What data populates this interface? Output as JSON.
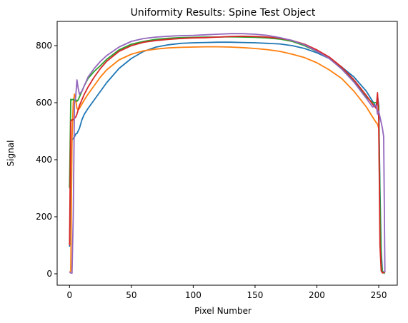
{
  "chart_data": {
    "type": "line",
    "title": "Uniformity Results: Spine Test Object",
    "xlabel": "Pixel Number",
    "ylabel": "Signal",
    "xlim": [
      -10,
      265
    ],
    "ylim": [
      -40,
      885
    ],
    "xticks": [
      0,
      50,
      100,
      150,
      200,
      250
    ],
    "yticks": [
      0,
      200,
      400,
      600,
      800
    ],
    "grid": false,
    "legend": "none",
    "series": [
      {
        "color": "#1f77b4",
        "x": [
          0,
          1,
          2,
          3,
          4,
          5,
          6,
          8,
          10,
          12,
          15,
          20,
          25,
          30,
          40,
          50,
          60,
          70,
          80,
          90,
          100,
          110,
          120,
          130,
          140,
          150,
          160,
          170,
          180,
          190,
          200,
          210,
          220,
          230,
          240,
          245,
          248,
          249,
          250,
          251,
          252,
          253,
          254,
          255
        ],
        "y": [
          95,
          250,
          470,
          475,
          480,
          490,
          492,
          510,
          540,
          560,
          580,
          610,
          640,
          670,
          720,
          755,
          780,
          795,
          803,
          808,
          810,
          811,
          812,
          812,
          811,
          810,
          808,
          806,
          800,
          790,
          775,
          755,
          725,
          690,
          640,
          605,
          585,
          625,
          590,
          300,
          80,
          10,
          5,
          5
        ]
      },
      {
        "color": "#ff7f0e",
        "x": [
          0,
          1,
          2,
          3,
          4,
          5,
          6,
          7,
          8,
          10,
          12,
          15,
          20,
          25,
          30,
          40,
          50,
          60,
          70,
          80,
          90,
          100,
          110,
          120,
          130,
          140,
          150,
          160,
          170,
          180,
          190,
          200,
          210,
          220,
          230,
          240,
          245,
          248,
          249,
          250,
          251,
          252,
          253,
          254,
          255
        ],
        "y": [
          5,
          10,
          470,
          600,
          630,
          610,
          580,
          575,
          580,
          595,
          610,
          630,
          660,
          690,
          715,
          750,
          770,
          782,
          788,
          792,
          794,
          795,
          796,
          796,
          795,
          793,
          790,
          786,
          780,
          770,
          758,
          740,
          715,
          685,
          640,
          585,
          550,
          530,
          525,
          510,
          200,
          40,
          5,
          3,
          2
        ]
      },
      {
        "color": "#2ca02c",
        "x": [
          0,
          1,
          2,
          3,
          4,
          5,
          6,
          7,
          8,
          10,
          12,
          15,
          20,
          25,
          30,
          40,
          50,
          60,
          70,
          80,
          90,
          100,
          110,
          120,
          130,
          140,
          150,
          160,
          170,
          180,
          190,
          200,
          210,
          220,
          230,
          240,
          245,
          248,
          249,
          250,
          251,
          252,
          253,
          254,
          255
        ],
        "y": [
          300,
          612,
          610,
          612,
          608,
          610,
          605,
          610,
          620,
          640,
          660,
          685,
          710,
          730,
          752,
          785,
          805,
          815,
          822,
          826,
          828,
          829,
          830,
          830,
          831,
          830,
          829,
          827,
          823,
          815,
          800,
          780,
          755,
          720,
          675,
          620,
          600,
          600,
          600,
          590,
          250,
          40,
          5,
          3,
          2
        ]
      },
      {
        "color": "#d62728",
        "x": [
          0,
          1,
          2,
          3,
          4,
          5,
          6,
          7,
          8,
          10,
          12,
          15,
          20,
          25,
          30,
          40,
          50,
          60,
          70,
          80,
          90,
          100,
          110,
          120,
          130,
          140,
          150,
          160,
          170,
          180,
          190,
          200,
          210,
          220,
          230,
          240,
          245,
          248,
          249,
          250,
          251,
          252,
          253,
          254,
          255
        ],
        "y": [
          100,
          535,
          540,
          540,
          545,
          550,
          560,
          575,
          590,
          610,
          630,
          655,
          690,
          720,
          745,
          780,
          800,
          812,
          818,
          822,
          825,
          827,
          828,
          830,
          832,
          833,
          832,
          830,
          826,
          818,
          805,
          785,
          760,
          725,
          680,
          625,
          595,
          580,
          635,
          540,
          100,
          10,
          3,
          5,
          5
        ]
      },
      {
        "color": "#9467bd",
        "x": [
          0,
          1,
          2,
          3,
          4,
          5,
          6,
          7,
          8,
          10,
          12,
          15,
          20,
          25,
          30,
          40,
          50,
          60,
          70,
          80,
          90,
          100,
          110,
          120,
          130,
          140,
          150,
          160,
          170,
          180,
          190,
          200,
          210,
          220,
          230,
          240,
          245,
          248,
          249,
          250,
          251,
          252,
          253,
          254,
          255
        ],
        "y": [
          5,
          3,
          2,
          200,
          600,
          620,
          680,
          650,
          630,
          640,
          660,
          690,
          720,
          745,
          765,
          795,
          815,
          825,
          830,
          833,
          835,
          836,
          838,
          840,
          842,
          842,
          840,
          836,
          828,
          818,
          803,
          780,
          755,
          718,
          672,
          615,
          585,
          590,
          560,
          570,
          550,
          530,
          510,
          480,
          5
        ]
      }
    ]
  }
}
